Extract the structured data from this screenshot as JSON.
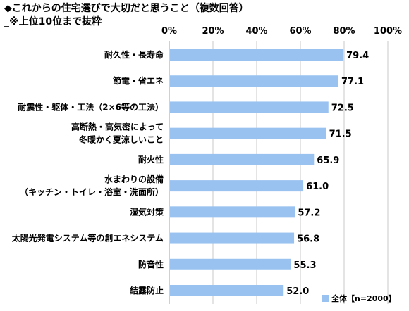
{
  "chart_data": {
    "type": "bar",
    "orientation": "horizontal",
    "title": "◆これからの住宅選びで大切だと思うこと（複数回答）",
    "subtitle": "_※上位10位まで抜粋",
    "categories": [
      [
        "耐久性・長寿命"
      ],
      [
        "節電・省エネ"
      ],
      [
        "耐震性・躯体・工法（2×6等の工法）"
      ],
      [
        "高断熱・高気密によって",
        "冬暖かく夏涼しいこと"
      ],
      [
        "耐火性"
      ],
      [
        "水まわりの設備",
        "（キッチン・トイレ・浴室・洗面所）"
      ],
      [
        "湿気対策"
      ],
      [
        "太陽光発電システム等の創エネシステム"
      ],
      [
        "防音性"
      ],
      [
        "結露防止"
      ]
    ],
    "series": [
      {
        "name": "全体【n=2000】",
        "values": [
          79.4,
          77.1,
          72.5,
          71.5,
          65.9,
          61.0,
          57.2,
          56.8,
          55.3,
          52.0
        ],
        "labels": [
          "79.4",
          "77.1",
          "72.5",
          "71.5",
          "65.9",
          "61.0",
          "57.2",
          "56.8",
          "55.3",
          "52.0"
        ]
      }
    ],
    "xlim": [
      0,
      100
    ],
    "xticks": [
      "0%",
      "20%",
      "40%",
      "60%",
      "80%",
      "100%"
    ],
    "xtick_values": [
      0,
      20,
      40,
      60,
      80,
      100
    ],
    "grid": true,
    "legend_position": "bottom-right",
    "colors": {
      "bar": "#99c2f0",
      "grid": "#c8c8c8",
      "axis": "#a0a0a0"
    }
  }
}
